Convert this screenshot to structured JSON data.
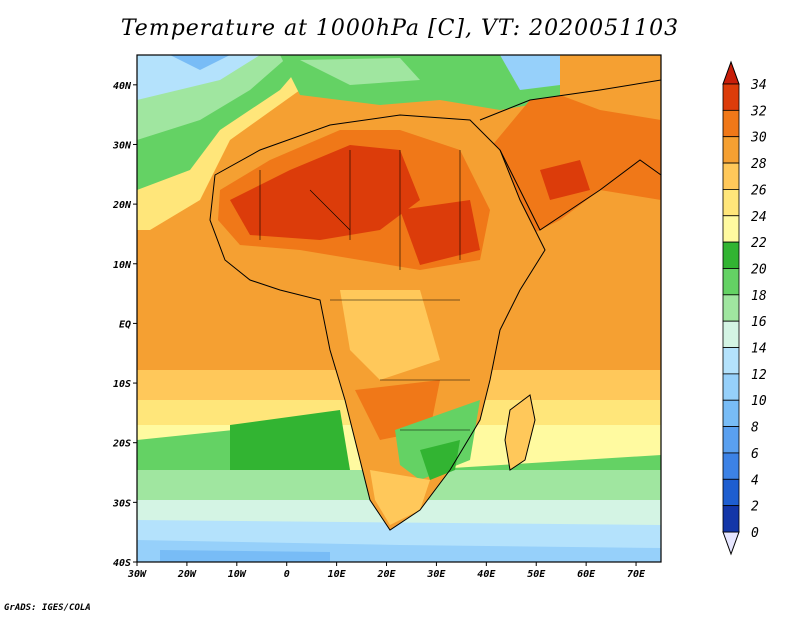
{
  "title": "Temperature at 1000hPa [C], VT: 2020051103",
  "credit": "GrADS: IGES/COLA",
  "map": {
    "lon_range": [
      -30,
      75
    ],
    "lat_range": [
      -40,
      45
    ],
    "lon_ticks": [
      {
        "value": -30,
        "label": "30W"
      },
      {
        "value": -20,
        "label": "20W"
      },
      {
        "value": -10,
        "label": "10W"
      },
      {
        "value": 0,
        "label": "0"
      },
      {
        "value": 10,
        "label": "10E"
      },
      {
        "value": 20,
        "label": "20E"
      },
      {
        "value": 30,
        "label": "30E"
      },
      {
        "value": 40,
        "label": "40E"
      },
      {
        "value": 50,
        "label": "50E"
      },
      {
        "value": 60,
        "label": "60E"
      },
      {
        "value": 70,
        "label": "70E"
      }
    ],
    "lat_ticks": [
      {
        "value": 40,
        "label": "40N"
      },
      {
        "value": 30,
        "label": "30N"
      },
      {
        "value": 20,
        "label": "20N"
      },
      {
        "value": 10,
        "label": "10N"
      },
      {
        "value": 0,
        "label": "EQ"
      },
      {
        "value": -10,
        "label": "10S"
      },
      {
        "value": -20,
        "label": "20S"
      },
      {
        "value": -30,
        "label": "30S"
      },
      {
        "value": -40,
        "label": "40S"
      }
    ]
  },
  "colorbar": {
    "levels": [
      {
        "label": "0",
        "color": "#0a1a66"
      },
      {
        "label": "2",
        "color": "#1336a8"
      },
      {
        "label": "4",
        "color": "#1e5ed0"
      },
      {
        "label": "6",
        "color": "#3c82e6"
      },
      {
        "label": "8",
        "color": "#5aa0f0"
      },
      {
        "label": "10",
        "color": "#78bcf6"
      },
      {
        "label": "12",
        "color": "#96d0fa"
      },
      {
        "label": "14",
        "color": "#b4e2fc"
      },
      {
        "label": "16",
        "color": "#d4f4e4"
      },
      {
        "label": "18",
        "color": "#a0e6a0"
      },
      {
        "label": "20",
        "color": "#64d264"
      },
      {
        "label": "22",
        "color": "#32b432"
      },
      {
        "label": "24",
        "color": "#fffaa0"
      },
      {
        "label": "26",
        "color": "#ffe67a"
      },
      {
        "label": "28",
        "color": "#ffc85a"
      },
      {
        "label": "30",
        "color": "#f5a032"
      },
      {
        "label": "32",
        "color": "#f07818"
      },
      {
        "label": "34",
        "color": "#dc3c0a"
      }
    ],
    "top_color": "#c81e0a",
    "bottom_color": "#e6e6ff"
  }
}
